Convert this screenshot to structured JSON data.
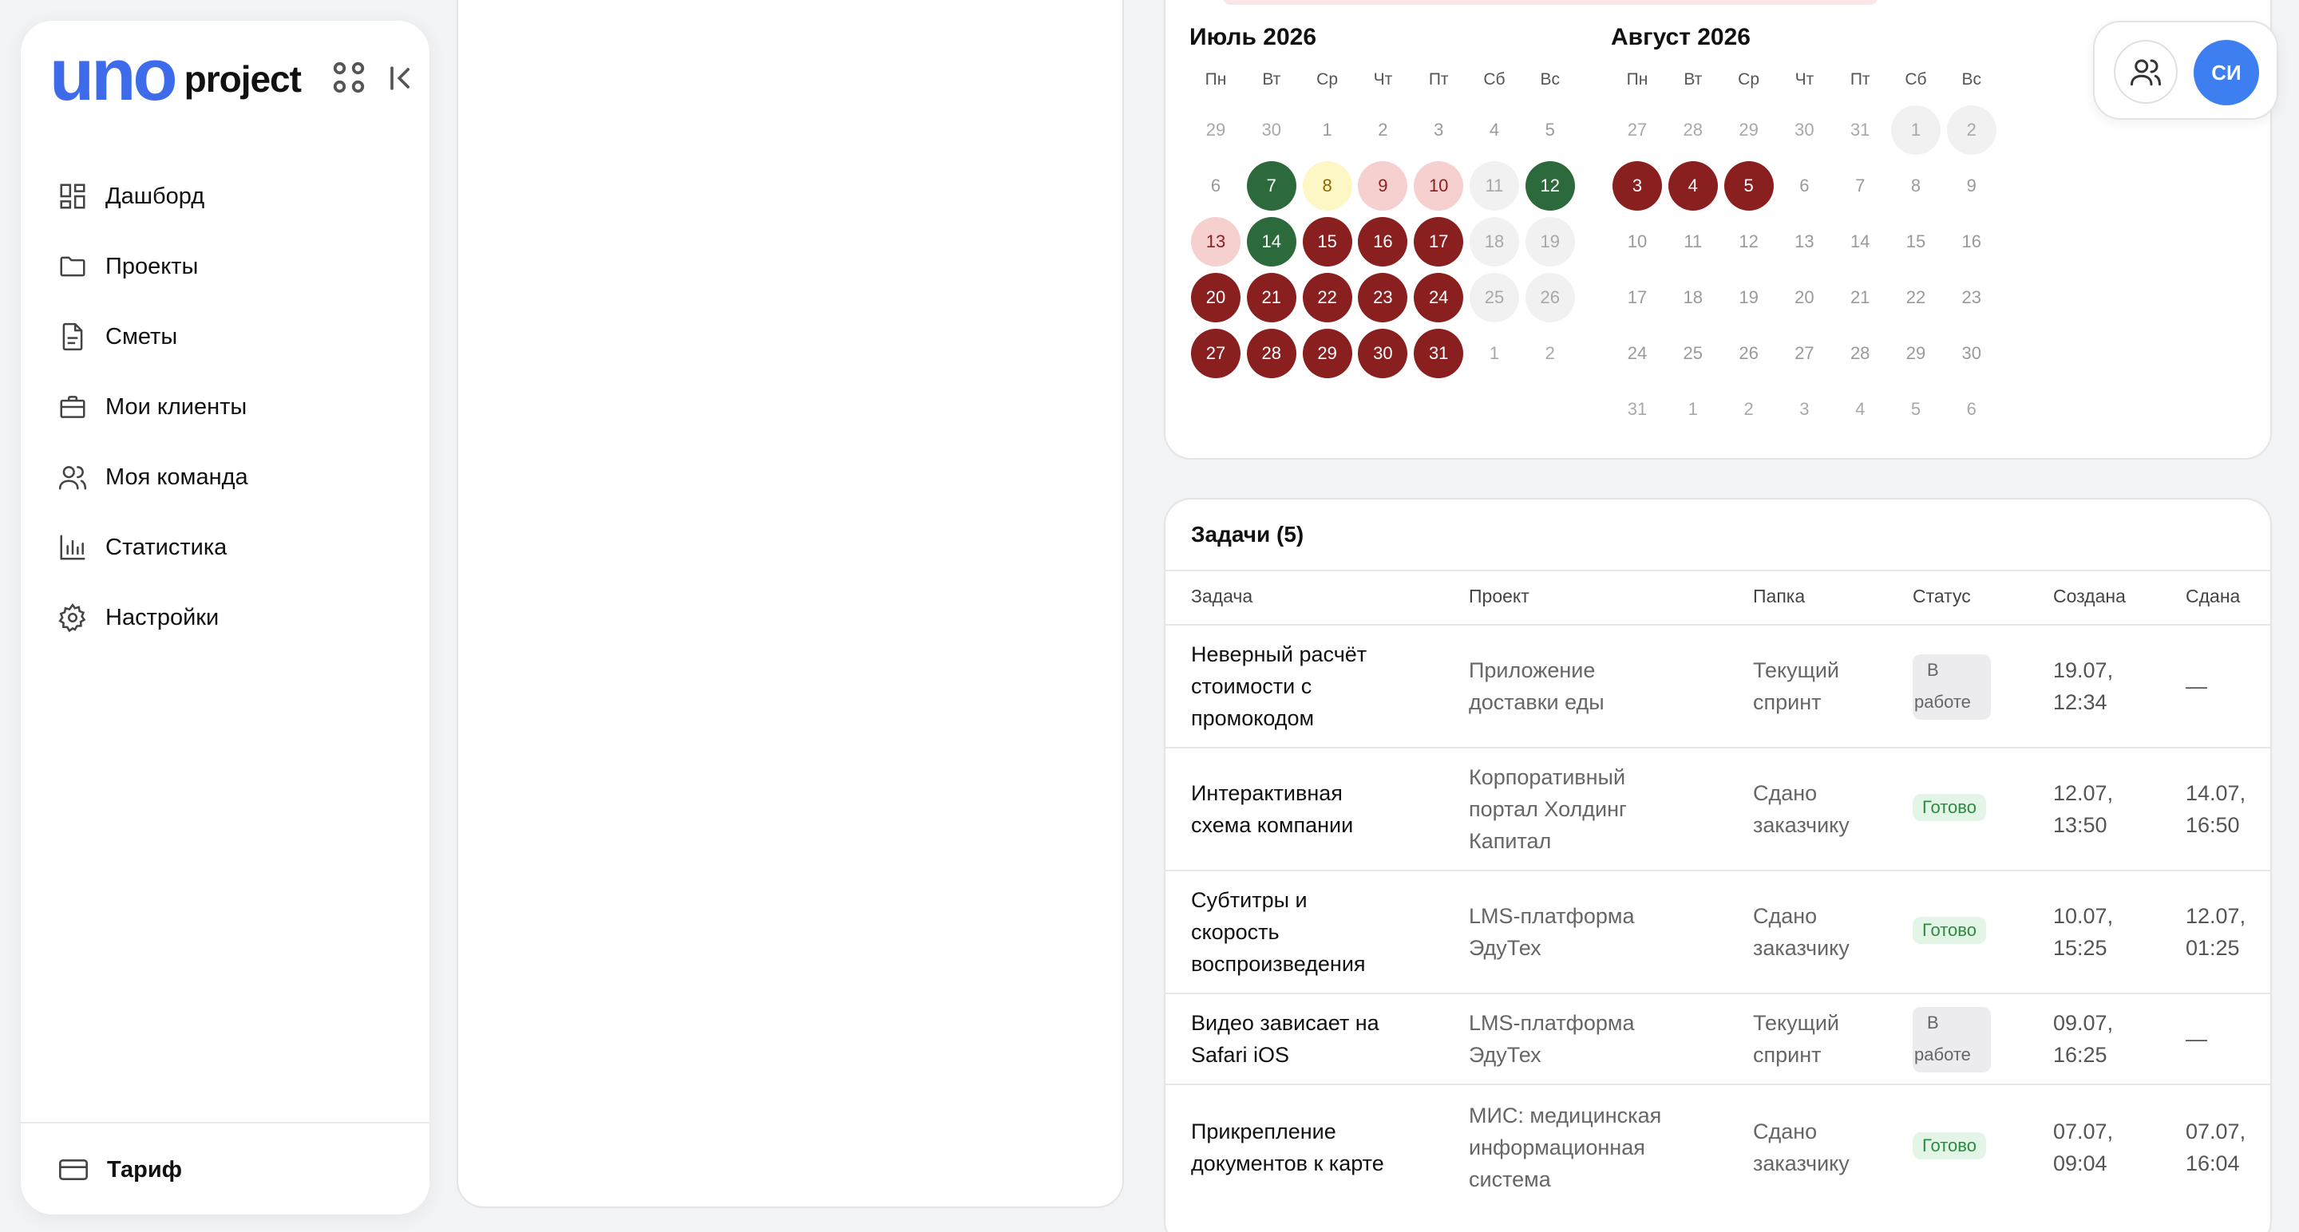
{
  "logo": {
    "uno": "uno",
    "project": "project"
  },
  "nav": [
    {
      "label": "Дашборд",
      "icon": "dashboard-icon"
    },
    {
      "label": "Проекты",
      "icon": "folder-icon"
    },
    {
      "label": "Сметы",
      "icon": "document-icon"
    },
    {
      "label": "Мои клиенты",
      "icon": "briefcase-icon"
    },
    {
      "label": "Моя команда",
      "icon": "team-icon"
    },
    {
      "label": "Статистика",
      "icon": "chart-icon"
    },
    {
      "label": "Настройки",
      "icon": "gear-icon"
    }
  ],
  "tariff": {
    "label": "Тариф",
    "icon": "card-icon"
  },
  "user": {
    "initials": "СИ"
  },
  "calendar": {
    "weekdays": [
      "Пн",
      "Вт",
      "Ср",
      "Чт",
      "Пт",
      "Сб",
      "Вс"
    ],
    "months": [
      {
        "title": "Июль 2026",
        "weeks": [
          [
            {
              "d": "29",
              "s": "out"
            },
            {
              "d": "30",
              "s": "out"
            },
            {
              "d": "1",
              "s": "none"
            },
            {
              "d": "2",
              "s": "none"
            },
            {
              "d": "3",
              "s": "none"
            },
            {
              "d": "4",
              "s": "none"
            },
            {
              "d": "5",
              "s": "none"
            }
          ],
          [
            {
              "d": "6",
              "s": "none"
            },
            {
              "d": "7",
              "s": "green"
            },
            {
              "d": "8",
              "s": "yellow"
            },
            {
              "d": "9",
              "s": "pink"
            },
            {
              "d": "10",
              "s": "pink"
            },
            {
              "d": "11",
              "s": "grey"
            },
            {
              "d": "12",
              "s": "green"
            }
          ],
          [
            {
              "d": "13",
              "s": "pink"
            },
            {
              "d": "14",
              "s": "green"
            },
            {
              "d": "15",
              "s": "red"
            },
            {
              "d": "16",
              "s": "red"
            },
            {
              "d": "17",
              "s": "red"
            },
            {
              "d": "18",
              "s": "grey"
            },
            {
              "d": "19",
              "s": "grey"
            }
          ],
          [
            {
              "d": "20",
              "s": "red"
            },
            {
              "d": "21",
              "s": "red"
            },
            {
              "d": "22",
              "s": "red"
            },
            {
              "d": "23",
              "s": "red"
            },
            {
              "d": "24",
              "s": "red"
            },
            {
              "d": "25",
              "s": "grey"
            },
            {
              "d": "26",
              "s": "grey"
            }
          ],
          [
            {
              "d": "27",
              "s": "red"
            },
            {
              "d": "28",
              "s": "red"
            },
            {
              "d": "29",
              "s": "red"
            },
            {
              "d": "30",
              "s": "red"
            },
            {
              "d": "31",
              "s": "red"
            },
            {
              "d": "1",
              "s": "out"
            },
            {
              "d": "2",
              "s": "out"
            }
          ]
        ]
      },
      {
        "title": "Август 2026",
        "weeks": [
          [
            {
              "d": "27",
              "s": "out"
            },
            {
              "d": "28",
              "s": "out"
            },
            {
              "d": "29",
              "s": "out"
            },
            {
              "d": "30",
              "s": "out"
            },
            {
              "d": "31",
              "s": "out"
            },
            {
              "d": "1",
              "s": "grey"
            },
            {
              "d": "2",
              "s": "grey"
            }
          ],
          [
            {
              "d": "3",
              "s": "red"
            },
            {
              "d": "4",
              "s": "red"
            },
            {
              "d": "5",
              "s": "red"
            },
            {
              "d": "6",
              "s": "none"
            },
            {
              "d": "7",
              "s": "none"
            },
            {
              "d": "8",
              "s": "none"
            },
            {
              "d": "9",
              "s": "none"
            }
          ],
          [
            {
              "d": "10",
              "s": "none"
            },
            {
              "d": "11",
              "s": "none"
            },
            {
              "d": "12",
              "s": "none"
            },
            {
              "d": "13",
              "s": "none"
            },
            {
              "d": "14",
              "s": "none"
            },
            {
              "d": "15",
              "s": "none"
            },
            {
              "d": "16",
              "s": "none"
            }
          ],
          [
            {
              "d": "17",
              "s": "none"
            },
            {
              "d": "18",
              "s": "none"
            },
            {
              "d": "19",
              "s": "none"
            },
            {
              "d": "20",
              "s": "none"
            },
            {
              "d": "21",
              "s": "none"
            },
            {
              "d": "22",
              "s": "none"
            },
            {
              "d": "23",
              "s": "none"
            }
          ],
          [
            {
              "d": "24",
              "s": "none"
            },
            {
              "d": "25",
              "s": "none"
            },
            {
              "d": "26",
              "s": "none"
            },
            {
              "d": "27",
              "s": "none"
            },
            {
              "d": "28",
              "s": "none"
            },
            {
              "d": "29",
              "s": "none"
            },
            {
              "d": "30",
              "s": "none"
            }
          ],
          [
            {
              "d": "31",
              "s": "out"
            },
            {
              "d": "1",
              "s": "out"
            },
            {
              "d": "2",
              "s": "out"
            },
            {
              "d": "3",
              "s": "out"
            },
            {
              "d": "4",
              "s": "out"
            },
            {
              "d": "5",
              "s": "out"
            },
            {
              "d": "6",
              "s": "out"
            }
          ]
        ]
      }
    ]
  },
  "tasks": {
    "title": "Задачи (5)",
    "columns": [
      "Задача",
      "Проект",
      "Папка",
      "Статус",
      "Создана",
      "Сдана"
    ],
    "rows": [
      {
        "task": [
          "Неверный расчёт",
          "стоимости с",
          "промокодом"
        ],
        "project": [
          "Приложение",
          "доставки еды"
        ],
        "folder": [
          "Текущий",
          "спринт"
        ],
        "status": "В работе",
        "status_kind": "work",
        "status_lines": [
          "В",
          "работе"
        ],
        "created": [
          "19.07,",
          "12:34"
        ],
        "done": [
          "—"
        ]
      },
      {
        "task": [
          "Интерактивная",
          "схема компании"
        ],
        "project": [
          "Корпоративный",
          "портал Холдинг",
          "Капитал"
        ],
        "folder": [
          "Сдано",
          "заказчику"
        ],
        "status": "Готово",
        "status_kind": "ready",
        "status_lines": [
          "Готово"
        ],
        "created": [
          "12.07,",
          "13:50"
        ],
        "done": [
          "14.07,",
          "16:50"
        ]
      },
      {
        "task": [
          "Субтитры и",
          "скорость",
          "воспроизведения"
        ],
        "project": [
          "LMS-платформа",
          "ЭдуТех"
        ],
        "folder": [
          "Сдано",
          "заказчику"
        ],
        "status": "Готово",
        "status_kind": "ready",
        "status_lines": [
          "Готово"
        ],
        "created": [
          "10.07,",
          "15:25"
        ],
        "done": [
          "12.07,",
          "01:25"
        ]
      },
      {
        "task": [
          "Видео зависает на",
          "Safari iOS"
        ],
        "project": [
          "LMS-платформа",
          "ЭдуТех"
        ],
        "folder": [
          "Текущий",
          "спринт"
        ],
        "status": "В работе",
        "status_kind": "work",
        "status_lines": [
          "В",
          "работе"
        ],
        "created": [
          "09.07,",
          "16:25"
        ],
        "done": [
          "—"
        ]
      },
      {
        "task": [
          "Прикрепление",
          "документов к карте"
        ],
        "project": [
          "МИС: медицинская",
          "информационная",
          "система"
        ],
        "folder": [
          "Сдано",
          "заказчику"
        ],
        "status": "Готово",
        "status_kind": "ready",
        "status_lines": [
          "Готово"
        ],
        "created": [
          "07.07,",
          "09:04"
        ],
        "done": [
          "07.07,",
          "16:04"
        ]
      }
    ]
  }
}
